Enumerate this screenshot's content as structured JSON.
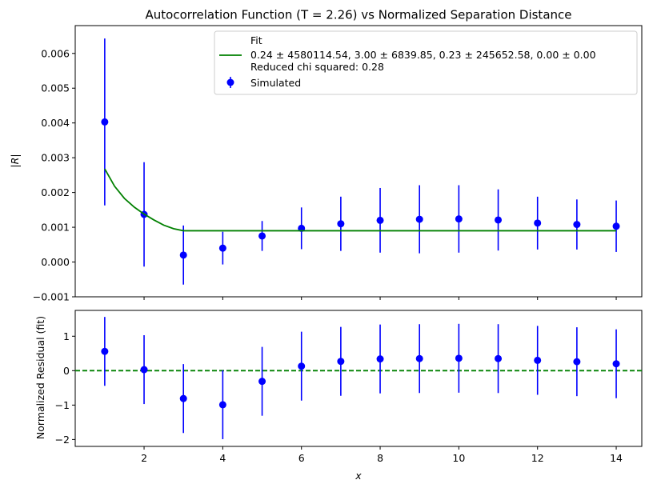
{
  "chart_data": [
    {
      "type": "scatter",
      "title": "Autocorrelation Function (T = 2.26) vs Normalized Separation Distance",
      "xlabel": "",
      "ylabel": "|R|",
      "xlim": [
        0.25,
        14.65
      ],
      "ylim": [
        -0.001,
        0.0068
      ],
      "yticks": [
        -0.001,
        0.0,
        0.001,
        0.002,
        0.003,
        0.004,
        0.005,
        0.006
      ],
      "ytick_labels": [
        "−0.001",
        "0.000",
        "0.001",
        "0.002",
        "0.003",
        "0.004",
        "0.005",
        "0.006"
      ],
      "xticks": [
        2,
        4,
        6,
        8,
        10,
        12,
        14
      ],
      "show_xtick_labels": false,
      "grid": false,
      "legend_position": "upper-right",
      "legend": {
        "fit_title": "Fit",
        "fit_params": "0.24 ± 4580114.54, 3.00 ± 6839.85, 0.23 ± 245652.58, 0.00 ± 0.00",
        "fit_chi": "Reduced chi squared: 0.28",
        "simulated": "Simulated"
      },
      "series": [
        {
          "name": "Simulated",
          "kind": "errorbar",
          "color": "#0000ff",
          "x": [
            1,
            2,
            3,
            4,
            5,
            6,
            7,
            8,
            9,
            10,
            11,
            12,
            13,
            14
          ],
          "y": [
            0.00403,
            0.00137,
            0.0002,
            0.0004,
            0.00075,
            0.00097,
            0.0011,
            0.0012,
            0.00123,
            0.00124,
            0.00121,
            0.00112,
            0.00108,
            0.00103
          ],
          "yerr": [
            0.0024,
            0.0015,
            0.00085,
            0.00047,
            0.00043,
            0.0006,
            0.00078,
            0.00093,
            0.00098,
            0.00097,
            0.00088,
            0.00076,
            0.00072,
            0.00074
          ]
        },
        {
          "name": "Fit",
          "kind": "line",
          "color": "#008000",
          "x": [
            1,
            1.25,
            1.5,
            1.75,
            2,
            2.25,
            2.5,
            2.75,
            3,
            4,
            5,
            6,
            7,
            8,
            9,
            10,
            11,
            12,
            13,
            14
          ],
          "y": [
            0.00268,
            0.00218,
            0.00183,
            0.00158,
            0.00138,
            0.00121,
            0.00106,
            0.00096,
            0.0009,
            0.0009,
            0.0009,
            0.0009,
            0.0009,
            0.0009,
            0.0009,
            0.0009,
            0.0009,
            0.0009,
            0.0009,
            0.0009
          ]
        }
      ]
    },
    {
      "type": "scatter",
      "title": "",
      "xlabel": "x",
      "ylabel": "Normalized Residual (fit)",
      "xlim": [
        0.25,
        14.65
      ],
      "ylim": [
        -2.2,
        1.75
      ],
      "yticks": [
        -2,
        -1,
        0,
        1
      ],
      "ytick_labels": [
        "−2",
        "−1",
        "0",
        "1"
      ],
      "xticks": [
        2,
        4,
        6,
        8,
        10,
        12,
        14
      ],
      "xtick_labels": [
        "2",
        "4",
        "6",
        "8",
        "10",
        "12",
        "14"
      ],
      "grid": false,
      "reference_line": {
        "y": 0,
        "style": "dashed",
        "color": "#008000"
      },
      "series": [
        {
          "kind": "errorbar",
          "color": "#0000ff",
          "x": [
            1,
            2,
            3,
            4,
            5,
            6,
            7,
            8,
            9,
            10,
            11,
            12,
            13,
            14
          ],
          "y": [
            0.56,
            0.03,
            -0.81,
            -0.99,
            -0.31,
            0.13,
            0.27,
            0.34,
            0.35,
            0.36,
            0.35,
            0.3,
            0.26,
            0.2
          ],
          "yerr": [
            1.0,
            1.0,
            1.0,
            1.0,
            1.0,
            1.0,
            1.0,
            1.0,
            1.0,
            1.0,
            1.0,
            1.0,
            1.0,
            1.0
          ]
        }
      ]
    }
  ]
}
